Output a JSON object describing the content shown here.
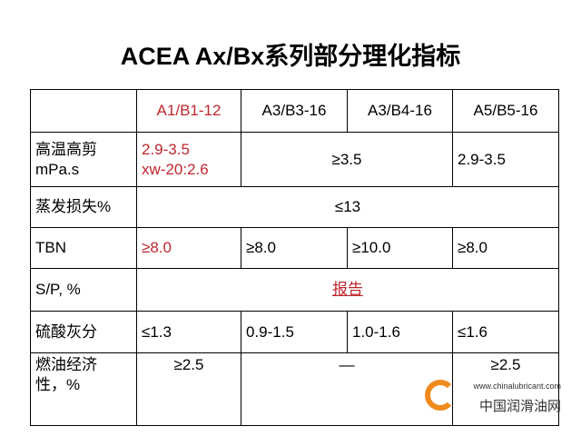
{
  "title": "ACEA Ax/Bx系列部分理化指标",
  "table": {
    "rows": [
      [
        "A1/B1-12",
        "A3/B3-16",
        "A3/B4-16",
        "A5/B5-16"
      ],
      [
        "高温高剪\nmPa.s",
        "2.9-3.5\nxw-20:2.6",
        "≥3.5",
        "2.9-3.5"
      ],
      [
        "蒸发损失%",
        "≤13"
      ],
      [
        "TBN",
        "≥8.0",
        "≥8.0",
        "≥10.0",
        "≥8.0"
      ],
      [
        "S/P, %",
        "报告"
      ],
      [
        "硫酸灰分",
        "≤1.3",
        "0.9-1.5",
        "1.0-1.6",
        "≤1.6"
      ],
      [
        "燃油经济\n性，%",
        "≥2.5",
        "—",
        "≥2.5"
      ]
    ]
  },
  "watermark": {
    "url": "www.chinalubricant.com",
    "name": "中国润滑油网"
  }
}
